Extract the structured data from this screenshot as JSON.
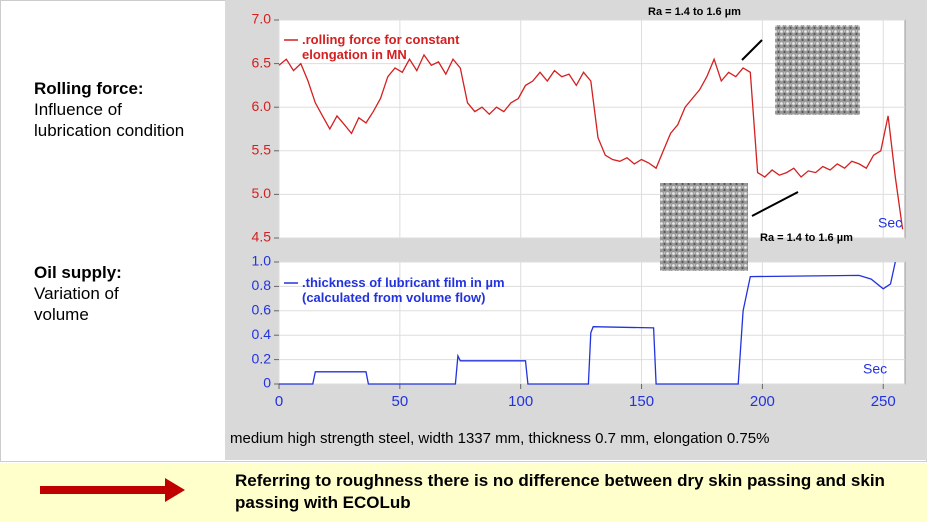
{
  "left_labels": [
    {
      "title": "Rolling force:",
      "lines": [
        "Influence of",
        "lubrication condition"
      ]
    },
    {
      "title": "Oil supply:",
      "lines": [
        "Variation of",
        "volume"
      ]
    }
  ],
  "chart_data": [
    {
      "type": "line",
      "x": [
        0,
        3,
        6,
        9,
        12,
        15,
        18,
        21,
        24,
        27,
        30,
        33,
        36,
        39,
        42,
        45,
        48,
        51,
        54,
        57,
        60,
        63,
        66,
        69,
        72,
        75,
        78,
        81,
        84,
        87,
        90,
        93,
        96,
        99,
        102,
        105,
        108,
        111,
        114,
        117,
        120,
        123,
        126,
        129,
        132,
        135,
        138,
        141,
        144,
        147,
        150,
        153,
        156,
        159,
        162,
        165,
        168,
        171,
        174,
        177,
        180,
        183,
        186,
        189,
        192,
        195,
        198,
        201,
        204,
        207,
        210,
        213,
        216,
        219,
        222,
        225,
        228,
        231,
        234,
        237,
        240,
        243,
        246,
        249,
        252,
        255,
        258
      ],
      "series": [
        {
          "name": ".rolling force for constant elongation in MN",
          "color": "#d42020",
          "values": [
            6.48,
            6.55,
            6.42,
            6.5,
            6.3,
            6.05,
            5.9,
            5.75,
            5.9,
            5.8,
            5.7,
            5.88,
            5.82,
            5.95,
            6.1,
            6.35,
            6.45,
            6.4,
            6.55,
            6.42,
            6.6,
            6.48,
            6.52,
            6.38,
            6.55,
            6.45,
            6.05,
            5.95,
            6.0,
            5.92,
            6.0,
            5.95,
            6.05,
            6.1,
            6.25,
            6.3,
            6.4,
            6.3,
            6.42,
            6.35,
            6.38,
            6.25,
            6.4,
            6.3,
            5.65,
            5.45,
            5.4,
            5.38,
            5.42,
            5.35,
            5.4,
            5.36,
            5.3,
            5.5,
            5.7,
            5.8,
            6.0,
            6.1,
            6.2,
            6.35,
            6.55,
            6.3,
            6.4,
            6.35,
            6.45,
            6.4,
            5.25,
            5.2,
            5.28,
            5.22,
            5.25,
            5.3,
            5.2,
            5.27,
            5.25,
            5.32,
            5.28,
            5.35,
            5.3,
            5.38,
            5.35,
            5.3,
            5.45,
            5.5,
            5.9,
            5.2,
            4.6
          ]
        }
      ],
      "xlim": [
        0,
        259
      ],
      "ylim": [
        4.5,
        7.0
      ],
      "yticks": [
        4.5,
        {
          "value": 5.0,
          "label": "5.0"
        },
        5.5,
        {
          "value": 6.0,
          "label": "6.0"
        },
        6.5,
        {
          "value": 7.0,
          "label": "7.0"
        }
      ],
      "grid": true,
      "annotations": [
        "Ra = 1.4 to 1.6 µm",
        "Ra = 1.4 to 1.6 µm",
        "Sec"
      ]
    },
    {
      "type": "line",
      "x": [
        0,
        14,
        15,
        36,
        37,
        73,
        74,
        75,
        102,
        103,
        128,
        129,
        130,
        155,
        156,
        190,
        192,
        195,
        240,
        245,
        250,
        253,
        255
      ],
      "series": [
        {
          "name": ".thickness of lubricant film in µm (calculated from volume flow)",
          "color": "#2233dd",
          "values": [
            0,
            0,
            0.1,
            0.1,
            0,
            0,
            0.23,
            0.19,
            0.19,
            0,
            0,
            0.42,
            0.47,
            0.46,
            0,
            0,
            0.6,
            0.88,
            0.89,
            0.86,
            0.78,
            0.82,
            1.0
          ]
        }
      ],
      "xlim": [
        0,
        259
      ],
      "ylim": [
        0,
        1.0
      ],
      "xticks": [
        0,
        50,
        100,
        150,
        200,
        250
      ],
      "yticks": [
        0,
        0.2,
        0.4,
        0.6,
        0.8,
        {
          "value": 1.0,
          "label": "1.0"
        }
      ],
      "grid": true,
      "annotations": [
        "Sec"
      ]
    }
  ],
  "caption": "medium high strength steel, width 1337 mm, thickness 0.7 mm, elongation 0.75%",
  "conclusion": "Referring to roughness there is no difference between dry skin passing and skin passing with ECOLub"
}
